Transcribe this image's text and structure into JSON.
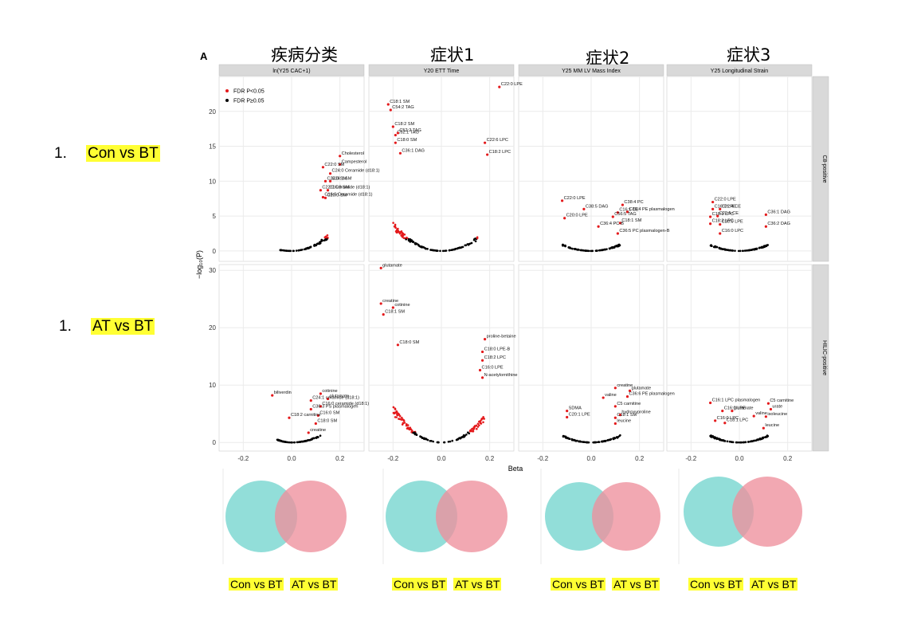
{
  "column_titles": [
    "疾病分类",
    "症状1",
    "症状2",
    "症状3"
  ],
  "row_labels": [
    {
      "number": "1.",
      "text": "Con vs BT"
    },
    {
      "number": "1.",
      "text": "AT vs BT"
    }
  ],
  "venn_captions": [
    {
      "left": "Con vs BT",
      "right": "AT vs BT"
    },
    {
      "left": "Con vs BT",
      "right": "AT vs BT"
    },
    {
      "left": "Con vs BT",
      "right": "AT vs BT"
    },
    {
      "left": "Con vs BT",
      "right": "AT vs BT"
    }
  ],
  "colors": {
    "significant": "#e41a1c",
    "nonsignificant": "#000000",
    "venn_left": "#7fd8d2",
    "venn_right": "#ee909c",
    "highlight": "#ffff33",
    "strip_bg": "#d9d9d9",
    "panel_bg": "#ffffff",
    "grid": "#ebebeb"
  },
  "chart_data": {
    "type": "scatter",
    "panel_tag": "A",
    "xlabel": "Beta",
    "ylabel": "−log₁₀(P)",
    "xlim": [
      -0.3,
      0.3
    ],
    "x_ticks": [
      "-0.2",
      "0.0",
      "0.2"
    ],
    "legend": {
      "placement": "top-left",
      "entries": [
        "FDR P<0.05",
        "FDR P≥0.05"
      ]
    },
    "grid": true,
    "facet_columns": [
      "ln(Y25 CAC+1)",
      "Y20 ETT Time",
      "Y25 MM LV Mass Index",
      "Y25 Longitudinal Strain"
    ],
    "facet_rows": [
      {
        "label": "C8-positive",
        "ylim": [
          -1.5,
          25
        ],
        "y_ticks": [
          "0",
          "5",
          "10",
          "15",
          "20"
        ]
      },
      {
        "label": "HILIC-positive",
        "ylim": [
          -1.5,
          31
        ],
        "y_ticks": [
          "0",
          "10",
          "20",
          "30"
        ]
      }
    ],
    "panels": [
      {
        "row": 0,
        "col": 0,
        "labels": [
          {
            "text": "Cholesterol",
            "x": 0.2,
            "y": 13.6
          },
          {
            "text": "Campesterol",
            "x": 0.2,
            "y": 12.4
          },
          {
            "text": "C22:0 SM",
            "x": 0.13,
            "y": 12.0
          },
          {
            "text": "C24:0 Ceramide (d18:1)",
            "x": 0.16,
            "y": 11.1
          },
          {
            "text": "C24:0 SM",
            "x": 0.14,
            "y": 10.0
          },
          {
            "text": "C24:1 SM",
            "x": 0.16,
            "y": 10.0
          },
          {
            "text": "C22:0 Ceramide (d18:1)",
            "x": 0.12,
            "y": 8.7
          },
          {
            "text": "C16:0 SM",
            "x": 0.15,
            "y": 8.7
          },
          {
            "text": "C16:0 Ceramide (d18:1)",
            "x": 0.13,
            "y": 7.7
          },
          {
            "text": "C20:0 SM",
            "x": 0.14,
            "y": 7.6
          }
        ]
      },
      {
        "row": 0,
        "col": 1,
        "labels": [
          {
            "text": "C22:0 LPE",
            "x": 0.24,
            "y": 23.5
          },
          {
            "text": "C18:1 SM",
            "x": -0.22,
            "y": 21.0
          },
          {
            "text": "C54:2 TAG",
            "x": -0.21,
            "y": 20.2
          },
          {
            "text": "C18:2 SM",
            "x": -0.2,
            "y": 17.8
          },
          {
            "text": "C52:1 TAG",
            "x": -0.19,
            "y": 16.6
          },
          {
            "text": "C52:2 TAG",
            "x": -0.18,
            "y": 16.9
          },
          {
            "text": "C18:0 SM",
            "x": -0.19,
            "y": 15.5
          },
          {
            "text": "C36:1 DAG",
            "x": -0.17,
            "y": 14.0
          },
          {
            "text": "C22:6 LPC",
            "x": 0.18,
            "y": 15.5
          },
          {
            "text": "C18:2 LPC",
            "x": 0.19,
            "y": 13.8
          }
        ]
      },
      {
        "row": 0,
        "col": 2,
        "labels": [
          {
            "text": "C22:0 LPE",
            "x": -0.12,
            "y": 7.2
          },
          {
            "text": "C38:4 PC",
            "x": 0.13,
            "y": 6.6
          },
          {
            "text": "C38:5 DAG",
            "x": -0.03,
            "y": 6.0
          },
          {
            "text": "C16:1 CE",
            "x": 0.11,
            "y": 5.5
          },
          {
            "text": "C36:4 PE plasmalogen",
            "x": 0.15,
            "y": 5.6
          },
          {
            "text": "C56:5 TAG",
            "x": 0.09,
            "y": 4.9
          },
          {
            "text": "C20:0 LPE",
            "x": -0.11,
            "y": 4.7
          },
          {
            "text": "C18:1 SM",
            "x": 0.12,
            "y": 4.0
          },
          {
            "text": "C36:4 PC-B",
            "x": 0.03,
            "y": 3.5
          },
          {
            "text": "C36:5 PC plasmalogen-B",
            "x": 0.11,
            "y": 2.5
          }
        ]
      },
      {
        "row": 0,
        "col": 3,
        "labels": [
          {
            "text": "C22:0 LPE",
            "x": -0.11,
            "y": 7.0
          },
          {
            "text": "C16:0 LPE",
            "x": -0.11,
            "y": 6.0
          },
          {
            "text": "C22:4 CE",
            "x": -0.08,
            "y": 6.0
          },
          {
            "text": "C18:1 LPC",
            "x": -0.12,
            "y": 4.9
          },
          {
            "text": "C22:5 CE",
            "x": -0.09,
            "y": 5.0
          },
          {
            "text": "C36:1 DAG",
            "x": 0.11,
            "y": 5.2
          },
          {
            "text": "C18:3 LPC",
            "x": -0.12,
            "y": 3.9
          },
          {
            "text": "C20:0 LPE",
            "x": -0.08,
            "y": 3.8
          },
          {
            "text": "C36:2 DAG",
            "x": 0.11,
            "y": 3.5
          },
          {
            "text": "C16:0 LPC",
            "x": -0.08,
            "y": 2.5
          }
        ]
      },
      {
        "row": 1,
        "col": 0,
        "labels": [
          {
            "text": "cotinine",
            "x": 0.12,
            "y": 8.5
          },
          {
            "text": "biliverdin",
            "x": -0.08,
            "y": 8.2
          },
          {
            "text": "glutamate",
            "x": 0.15,
            "y": 7.6
          },
          {
            "text": "C24:1 ceramide (d18:1)",
            "x": 0.08,
            "y": 7.3
          },
          {
            "text": "C16:0 ceramide (d18:1)",
            "x": 0.12,
            "y": 6.3
          },
          {
            "text": "C36:3 PS plasmalogen",
            "x": 0.08,
            "y": 5.8
          },
          {
            "text": "C16:0 SM",
            "x": 0.11,
            "y": 4.7
          },
          {
            "text": "C18:2 carnitine",
            "x": -0.01,
            "y": 4.3
          },
          {
            "text": "C18:0 SM",
            "x": 0.1,
            "y": 3.3
          },
          {
            "text": "creatine",
            "x": 0.07,
            "y": 1.7
          }
        ]
      },
      {
        "row": 1,
        "col": 1,
        "labels": [
          {
            "text": "glutamate",
            "x": -0.25,
            "y": 30.4
          },
          {
            "text": "creatine",
            "x": -0.25,
            "y": 24.2
          },
          {
            "text": "cotinine",
            "x": -0.2,
            "y": 23.5
          },
          {
            "text": "C18:1 SM",
            "x": -0.24,
            "y": 22.3
          },
          {
            "text": "C18:0 SM",
            "x": -0.18,
            "y": 17.0
          },
          {
            "text": "proline-betaine",
            "x": 0.18,
            "y": 18.0
          },
          {
            "text": "C18:0 LPE-B",
            "x": 0.17,
            "y": 15.8
          },
          {
            "text": "C18:2 LPC",
            "x": 0.17,
            "y": 14.3
          },
          {
            "text": "C16:0 LPE",
            "x": 0.16,
            "y": 12.6
          },
          {
            "text": "N-acetylornithine",
            "x": 0.17,
            "y": 11.3
          }
        ]
      },
      {
        "row": 1,
        "col": 2,
        "labels": [
          {
            "text": "creatine",
            "x": 0.1,
            "y": 9.5
          },
          {
            "text": "glutamate",
            "x": 0.16,
            "y": 9.0
          },
          {
            "text": "valine",
            "x": 0.05,
            "y": 7.8
          },
          {
            "text": "C36:6 PE plasmalogen",
            "x": 0.15,
            "y": 8.0
          },
          {
            "text": "SDMA",
            "x": -0.1,
            "y": 5.5
          },
          {
            "text": "C5 carnitine",
            "x": 0.1,
            "y": 6.3
          },
          {
            "text": "hydroxyproline",
            "x": 0.12,
            "y": 4.8
          },
          {
            "text": "C20:1 LPE",
            "x": -0.1,
            "y": 4.4
          },
          {
            "text": "C18:1 SM",
            "x": 0.1,
            "y": 4.3
          },
          {
            "text": "leucine",
            "x": 0.1,
            "y": 3.3
          }
        ]
      },
      {
        "row": 1,
        "col": 3,
        "labels": [
          {
            "text": "C16:1 LPC plasmalogen",
            "x": -0.12,
            "y": 6.9
          },
          {
            "text": "C5 carnitine",
            "x": 0.12,
            "y": 6.8
          },
          {
            "text": "urate",
            "x": 0.13,
            "y": 5.8
          },
          {
            "text": "C16:0 LPE",
            "x": -0.07,
            "y": 5.5
          },
          {
            "text": "glutamate",
            "x": -0.03,
            "y": 5.5
          },
          {
            "text": "valine",
            "x": 0.06,
            "y": 4.6
          },
          {
            "text": "isoleucine",
            "x": 0.11,
            "y": 4.5
          },
          {
            "text": "C16:0 LPC",
            "x": -0.1,
            "y": 3.8
          },
          {
            "text": "C18:1 LPC",
            "x": -0.06,
            "y": 3.4
          },
          {
            "text": "leucine",
            "x": 0.1,
            "y": 2.5
          }
        ]
      }
    ]
  }
}
